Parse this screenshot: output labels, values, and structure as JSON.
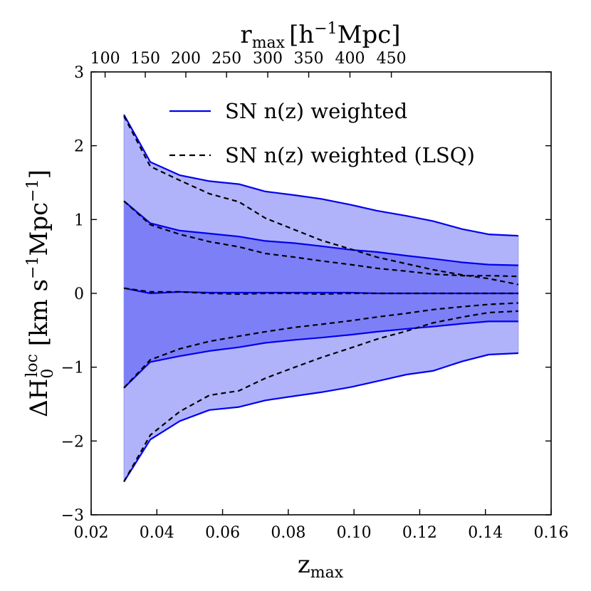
{
  "chart_data": {
    "type": "area",
    "title": "",
    "xlabel": {
      "main": "z",
      "sub": "max"
    },
    "top_xlabel": {
      "main": "r",
      "sub": "max",
      "bracket_open": "[h",
      "sup": "−1",
      "unit": "Mpc]"
    },
    "ylabel": {
      "prefix": "ΔH",
      "sub": "0",
      "sup": "loc",
      "unit_open": " [km s",
      "unit_sup": "−1",
      "unit_mid": "Mpc",
      "unit_sup2": "−1",
      "unit_close": "]"
    },
    "xlim": [
      0.02,
      0.16
    ],
    "ylim": [
      -3,
      3
    ],
    "x_ticks": [
      0.02,
      0.04,
      0.06,
      0.08,
      0.1,
      0.12,
      0.14,
      0.16
    ],
    "x_tick_labels": [
      "0.02",
      "0.04",
      "0.06",
      "0.08",
      "0.10",
      "0.12",
      "0.14",
      "0.16"
    ],
    "y_ticks": [
      -3,
      -2,
      -1,
      0,
      1,
      2,
      3
    ],
    "y_tick_labels": [
      "−3",
      "−2",
      "−1",
      "0",
      "1",
      "2",
      "3"
    ],
    "top_ticks": [
      {
        "z": 0.02425,
        "label": "100"
      },
      {
        "z": 0.03648,
        "label": "150"
      },
      {
        "z": 0.04882,
        "label": "200"
      },
      {
        "z": 0.06121,
        "label": "250"
      },
      {
        "z": 0.07375,
        "label": "300"
      },
      {
        "z": 0.08622,
        "label": "350"
      },
      {
        "z": 0.09877,
        "label": "400"
      },
      {
        "z": 0.11137,
        "label": "450"
      }
    ],
    "x": [
      0.03,
      0.038,
      0.047,
      0.056,
      0.065,
      0.073,
      0.082,
      0.09,
      0.099,
      0.107,
      0.116,
      0.124,
      0.133,
      0.141,
      0.15
    ],
    "series": [
      {
        "name": "SN n(z) weighted",
        "style": "solid",
        "color": "#0000ee",
        "mean": [
          0.07,
          0.0,
          0.02,
          0.01,
          0.01,
          0.01,
          0.01,
          0.01,
          0.01,
          0.0,
          0.0,
          0.0,
          0.0,
          0.0,
          0.0
        ],
        "upper_1sigma": [
          1.25,
          0.95,
          0.85,
          0.81,
          0.77,
          0.71,
          0.68,
          0.64,
          0.59,
          0.56,
          0.51,
          0.47,
          0.42,
          0.39,
          0.38
        ],
        "lower_1sigma": [
          -1.28,
          -0.93,
          -0.85,
          -0.78,
          -0.73,
          -0.67,
          -0.63,
          -0.6,
          -0.56,
          -0.52,
          -0.48,
          -0.45,
          -0.41,
          -0.38,
          -0.38
        ],
        "upper_2sigma": [
          2.42,
          1.78,
          1.6,
          1.52,
          1.48,
          1.38,
          1.33,
          1.28,
          1.2,
          1.12,
          1.05,
          0.98,
          0.87,
          0.8,
          0.78
        ],
        "lower_2sigma": [
          -2.55,
          -1.98,
          -1.73,
          -1.58,
          -1.54,
          -1.45,
          -1.39,
          -1.34,
          -1.27,
          -1.19,
          -1.1,
          -1.05,
          -0.92,
          -0.83,
          -0.81
        ]
      },
      {
        "name": "SN n(z) weighted (LSQ)",
        "style": "dashed",
        "color": "#000000",
        "mean": [
          0.07,
          0.02,
          0.02,
          0.0,
          -0.01,
          0.0,
          0.0,
          -0.01,
          0.0,
          0.0,
          0.0,
          0.0,
          0.0,
          0.0,
          0.0
        ],
        "upper_1sigma": [
          1.25,
          0.93,
          0.8,
          0.7,
          0.63,
          0.54,
          0.49,
          0.44,
          0.39,
          0.34,
          0.3,
          0.26,
          0.24,
          0.24,
          0.23
        ],
        "lower_1sigma": [
          -1.28,
          -0.9,
          -0.75,
          -0.65,
          -0.58,
          -0.52,
          -0.46,
          -0.42,
          -0.37,
          -0.32,
          -0.27,
          -0.22,
          -0.18,
          -0.15,
          -0.13
        ],
        "upper_2sigma": [
          2.4,
          1.72,
          1.53,
          1.35,
          1.24,
          1.02,
          0.86,
          0.72,
          0.6,
          0.49,
          0.4,
          0.32,
          0.25,
          0.2,
          0.12
        ],
        "lower_2sigma": [
          -2.55,
          -1.92,
          -1.6,
          -1.38,
          -1.32,
          -1.15,
          -1.0,
          -0.87,
          -0.74,
          -0.62,
          -0.51,
          -0.4,
          -0.32,
          -0.26,
          -0.24
        ]
      }
    ],
    "legend": {
      "placement": "top-center",
      "entries": [
        "SN n(z) weighted",
        "SN n(z) weighted (LSQ)"
      ]
    },
    "band_colors": {
      "outer": "#b1b3fa",
      "inner": "#7d7ff7",
      "outer_edge": "#9a9aef",
      "blue_line": "#0000ee",
      "dashed_line": "#000000"
    },
    "grid": false
  }
}
